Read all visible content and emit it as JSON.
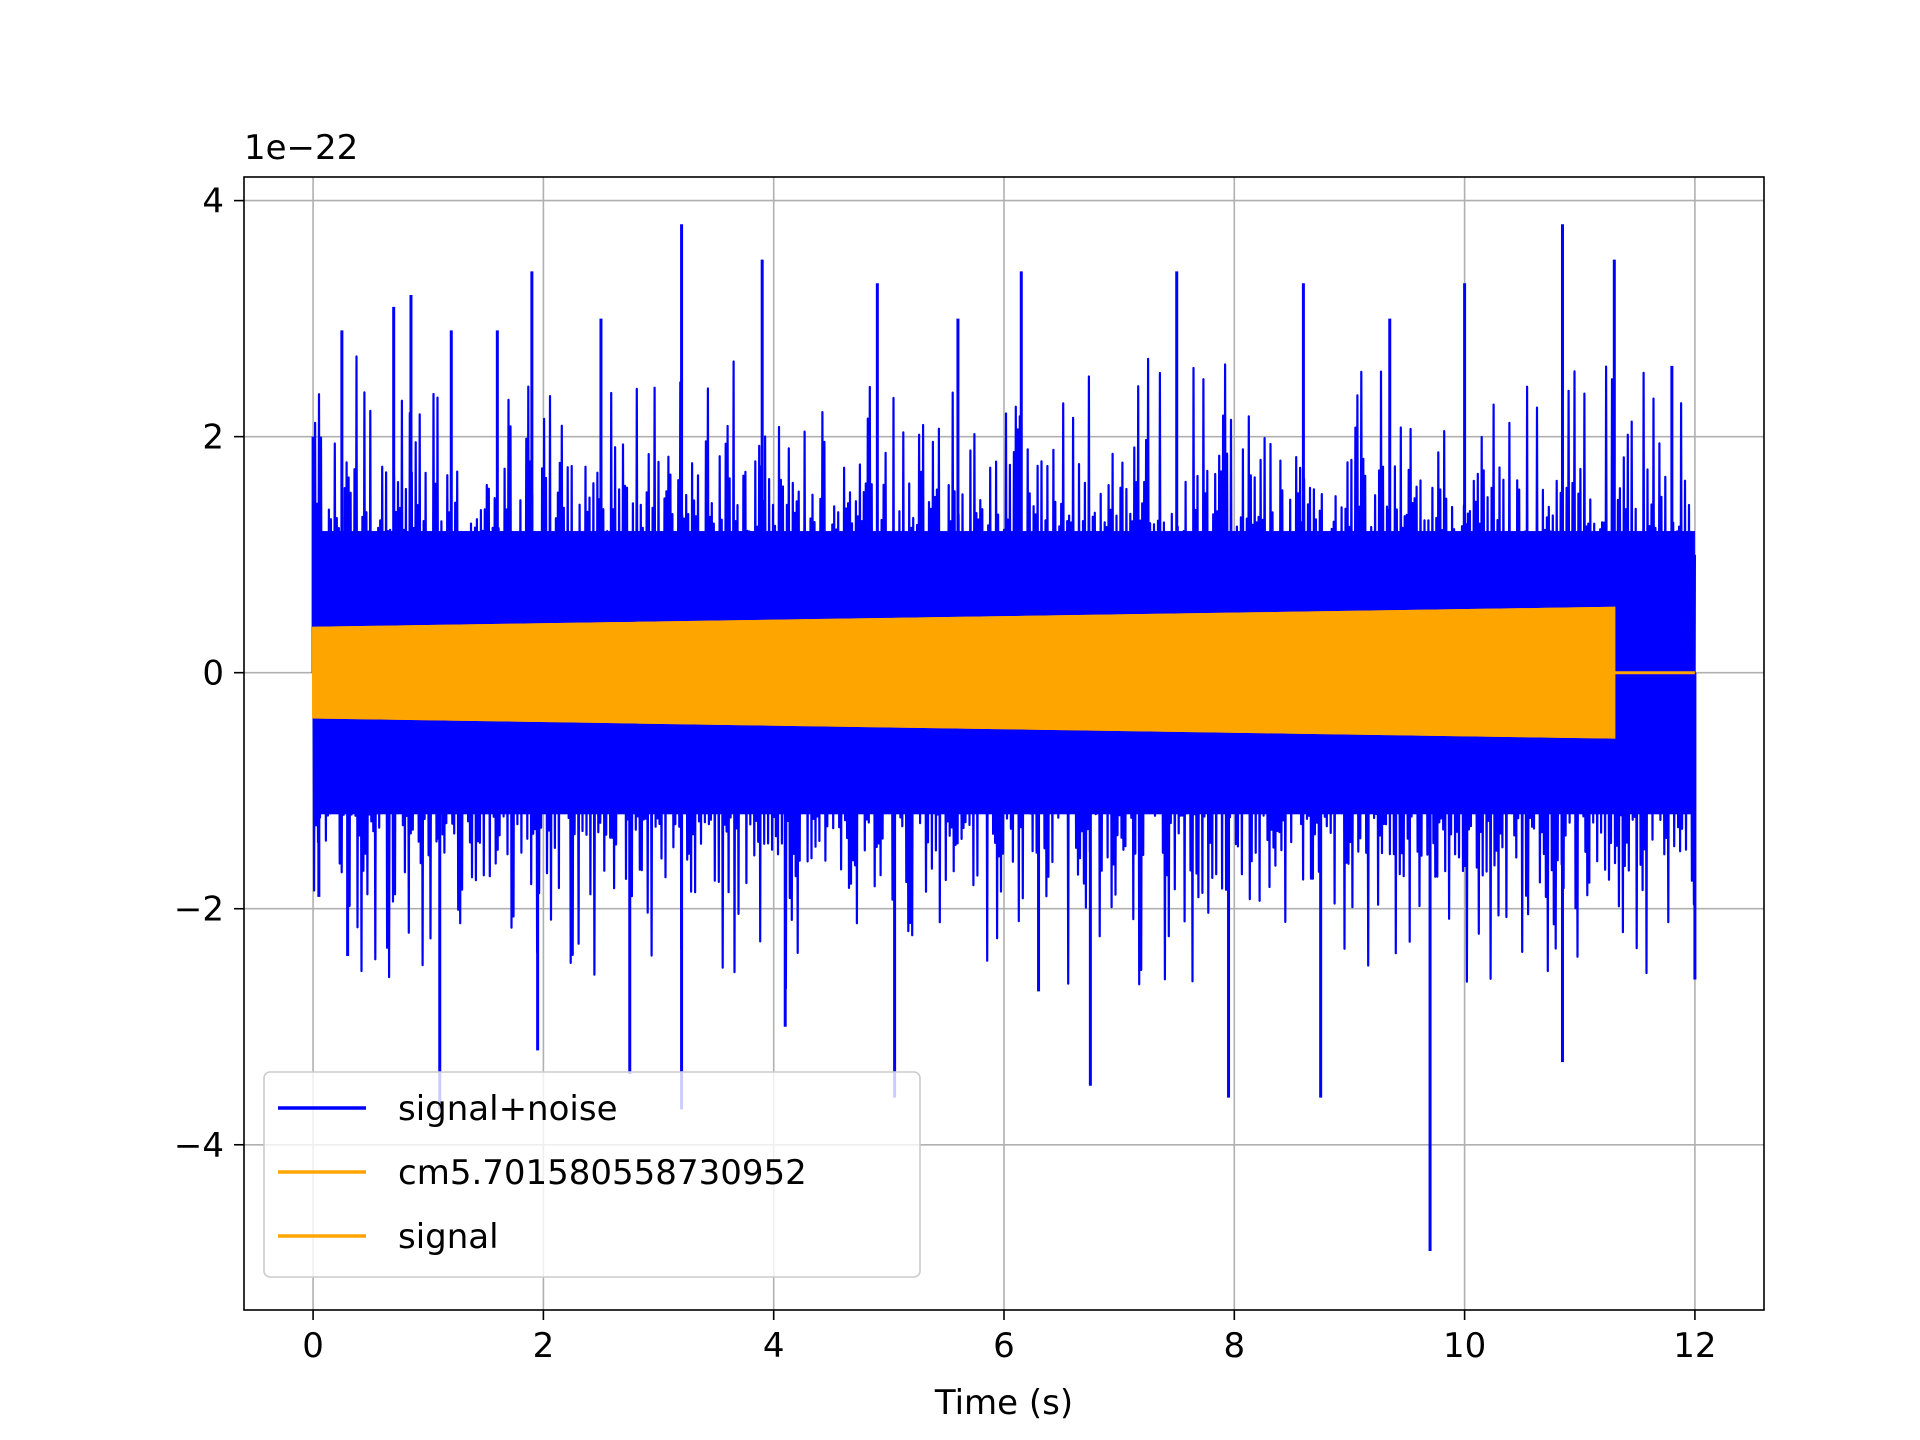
{
  "chart_data": {
    "type": "line",
    "title": "",
    "xlabel": "Time (s)",
    "ylabel": "",
    "y_offset_label": "1e−22",
    "xlim": [
      -0.6,
      12.6
    ],
    "ylim": [
      -5.4,
      4.2
    ],
    "xticks": [
      0,
      2,
      4,
      6,
      8,
      10,
      12
    ],
    "yticks": [
      -4,
      -2,
      0,
      2,
      4
    ],
    "ytick_labels": [
      "−4",
      "−2",
      "0",
      "2",
      "4"
    ],
    "grid": true,
    "legend_position": "lower-left",
    "series": [
      {
        "name": "signal+noise",
        "color": "#0000ff",
        "x_range": [
          0,
          12
        ],
        "core_band": [
          -1.2,
          1.2
        ],
        "peak_values": [
          {
            "x": 0.0,
            "y": 2.0
          },
          {
            "x": 0.05,
            "y": -1.9
          },
          {
            "x": 0.25,
            "y": 2.9
          },
          {
            "x": 0.3,
            "y": -2.4
          },
          {
            "x": 0.7,
            "y": 3.1
          },
          {
            "x": 0.85,
            "y": 3.2
          },
          {
            "x": 1.1,
            "y": -3.7
          },
          {
            "x": 1.2,
            "y": 2.9
          },
          {
            "x": 1.6,
            "y": 2.9
          },
          {
            "x": 1.9,
            "y": 3.4
          },
          {
            "x": 1.95,
            "y": -3.2
          },
          {
            "x": 2.5,
            "y": 3.0
          },
          {
            "x": 2.75,
            "y": -3.4
          },
          {
            "x": 3.2,
            "y": 3.8
          },
          {
            "x": 3.2,
            "y": -3.7
          },
          {
            "x": 3.9,
            "y": 3.5
          },
          {
            "x": 4.1,
            "y": -3.0
          },
          {
            "x": 4.9,
            "y": 3.3
          },
          {
            "x": 5.05,
            "y": -3.6
          },
          {
            "x": 5.6,
            "y": 3.0
          },
          {
            "x": 6.15,
            "y": 3.4
          },
          {
            "x": 6.3,
            "y": -2.7
          },
          {
            "x": 6.75,
            "y": -3.5
          },
          {
            "x": 7.5,
            "y": 3.4
          },
          {
            "x": 7.95,
            "y": -3.6
          },
          {
            "x": 8.6,
            "y": 3.3
          },
          {
            "x": 8.75,
            "y": -3.6
          },
          {
            "x": 9.35,
            "y": 3.0
          },
          {
            "x": 9.7,
            "y": -4.9
          },
          {
            "x": 10.0,
            "y": 3.3
          },
          {
            "x": 10.85,
            "y": 3.8
          },
          {
            "x": 10.85,
            "y": -3.3
          },
          {
            "x": 11.3,
            "y": 3.5
          },
          {
            "x": 11.8,
            "y": 2.6
          },
          {
            "x": 12.0,
            "y": -2.6
          }
        ]
      },
      {
        "name": "cm5.701580558730952",
        "color": "#ffa500",
        "x_range": [
          0,
          11.3
        ],
        "amplitude_start": 0.38,
        "amplitude_end": 0.55
      },
      {
        "name": "signal",
        "color": "#ffa500",
        "x_range": [
          0,
          12
        ],
        "amplitude_start": 0.38,
        "amplitude_end": 0.55,
        "zero_after_x": 11.3
      }
    ]
  }
}
